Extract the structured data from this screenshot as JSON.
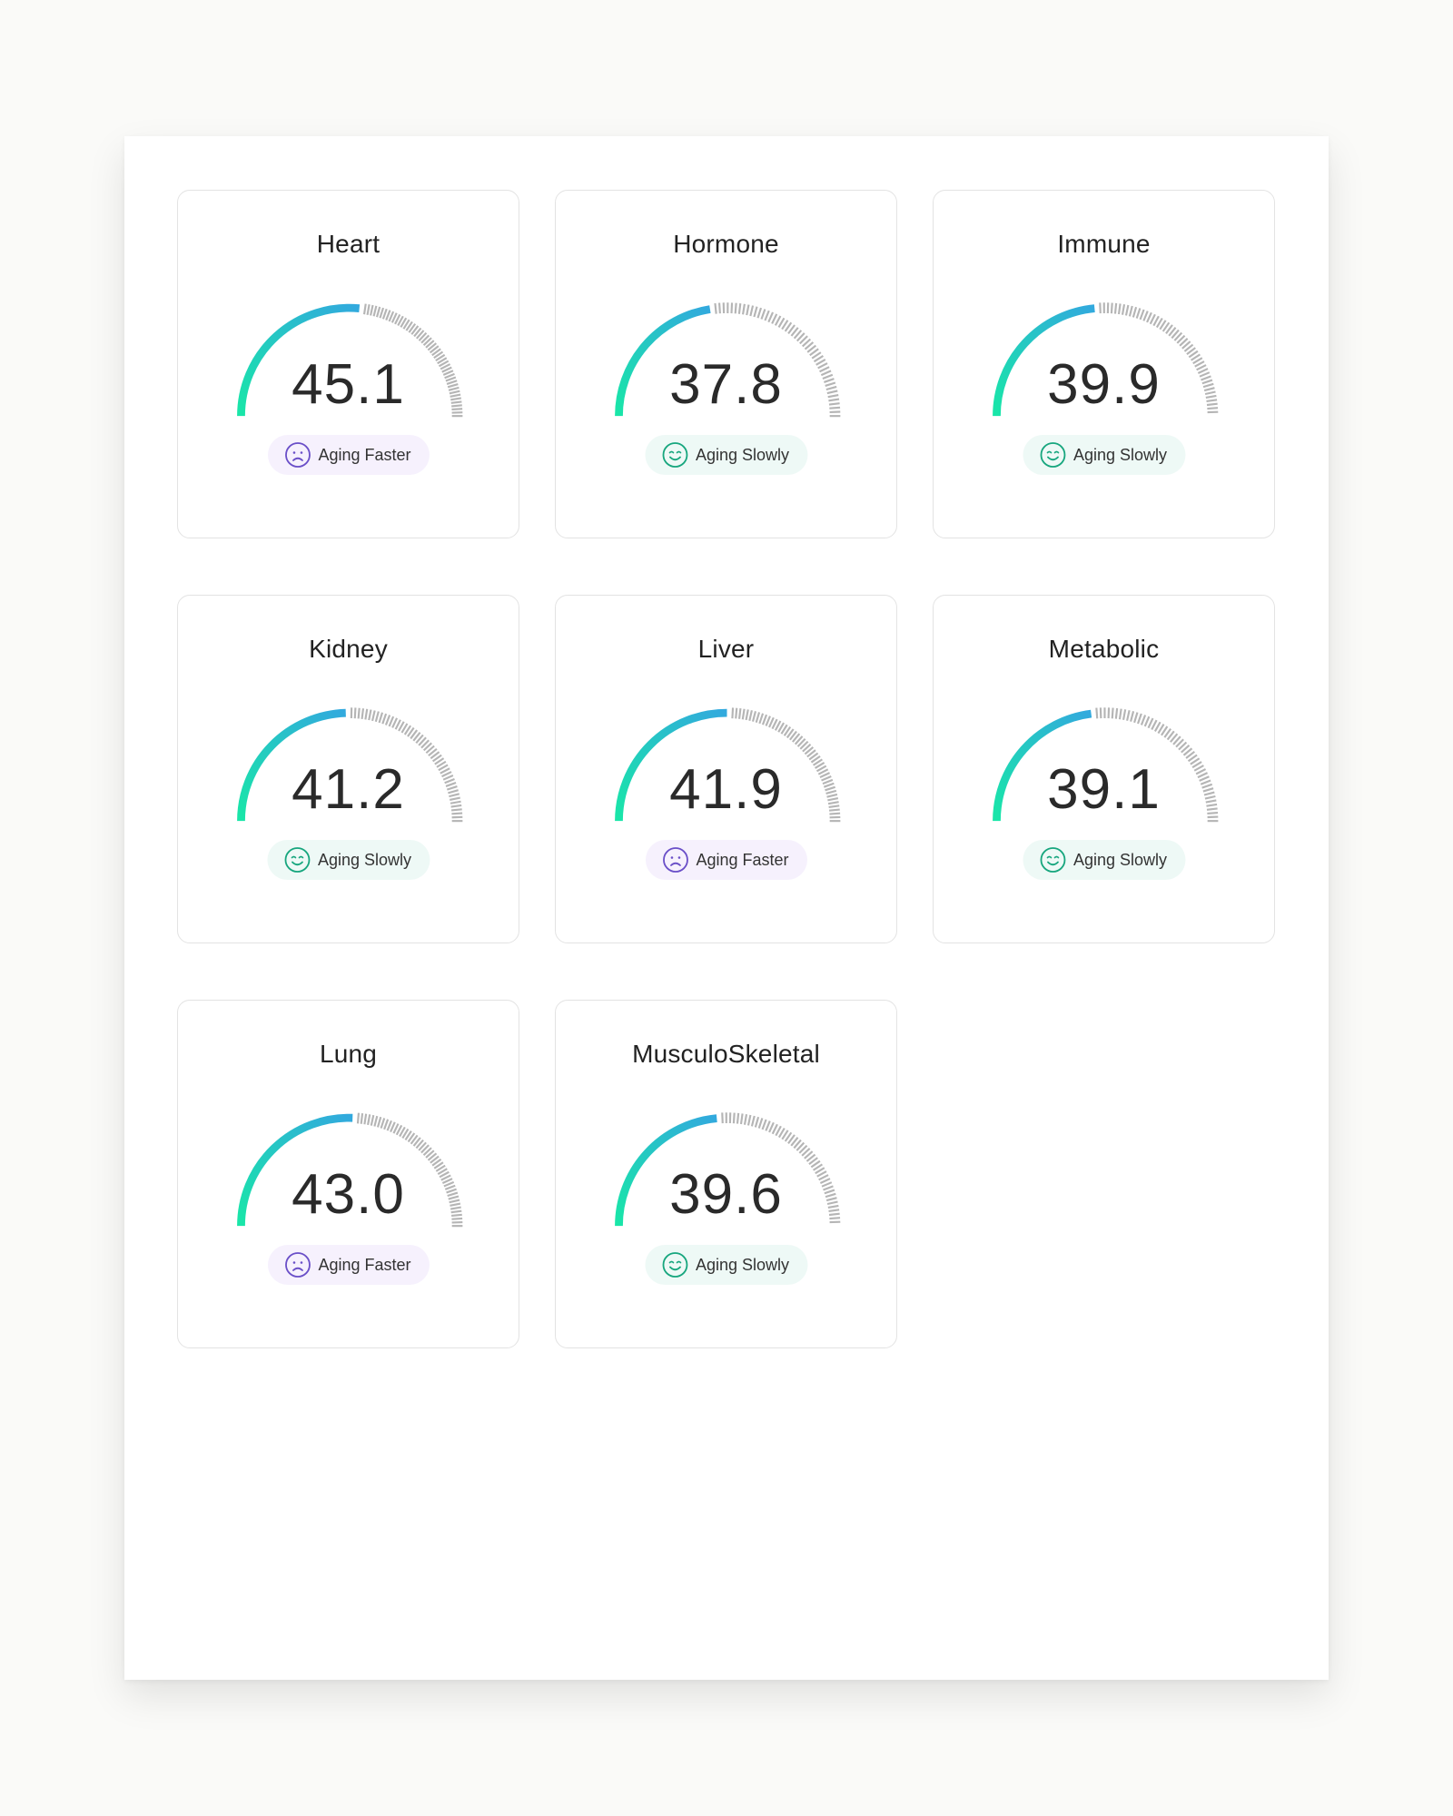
{
  "colors": {
    "arc_start": "#19e6a8",
    "arc_end": "#32a9de",
    "ticks": "#b5b5b5",
    "faster_icon": "#6a4fc8",
    "slowly_icon": "#17a67e",
    "faster_bg": "#f6f1fd",
    "slowly_bg": "#eef9f6"
  },
  "cards": [
    {
      "title": "Heart",
      "value": "45.1",
      "status": "faster",
      "status_label": "Aging Faster",
      "icon": "frown-face-icon",
      "arc_fraction": 0.53
    },
    {
      "title": "Hormone",
      "value": "37.8",
      "status": "slowly",
      "status_label": "Aging Slowly",
      "icon": "smile-face-icon",
      "arc_fraction": 0.45
    },
    {
      "title": "Immune",
      "value": "39.9",
      "status": "slowly",
      "status_label": "Aging Slowly",
      "icon": "smile-face-icon",
      "arc_fraction": 0.47
    },
    {
      "title": "Kidney",
      "value": "41.2",
      "status": "slowly",
      "status_label": "Aging Slowly",
      "icon": "smile-face-icon",
      "arc_fraction": 0.49
    },
    {
      "title": "Liver",
      "value": "41.9",
      "status": "faster",
      "status_label": "Aging Faster",
      "icon": "frown-face-icon",
      "arc_fraction": 0.5
    },
    {
      "title": "Metabolic",
      "value": "39.1",
      "status": "slowly",
      "status_label": "Aging Slowly",
      "icon": "smile-face-icon",
      "arc_fraction": 0.46
    },
    {
      "title": "Lung",
      "value": "43.0",
      "status": "faster",
      "status_label": "Aging Faster",
      "icon": "frown-face-icon",
      "arc_fraction": 0.51
    },
    {
      "title": "MusculoSkeletal",
      "value": "39.6",
      "status": "slowly",
      "status_label": "Aging Slowly",
      "icon": "smile-face-icon",
      "arc_fraction": 0.47
    }
  ]
}
